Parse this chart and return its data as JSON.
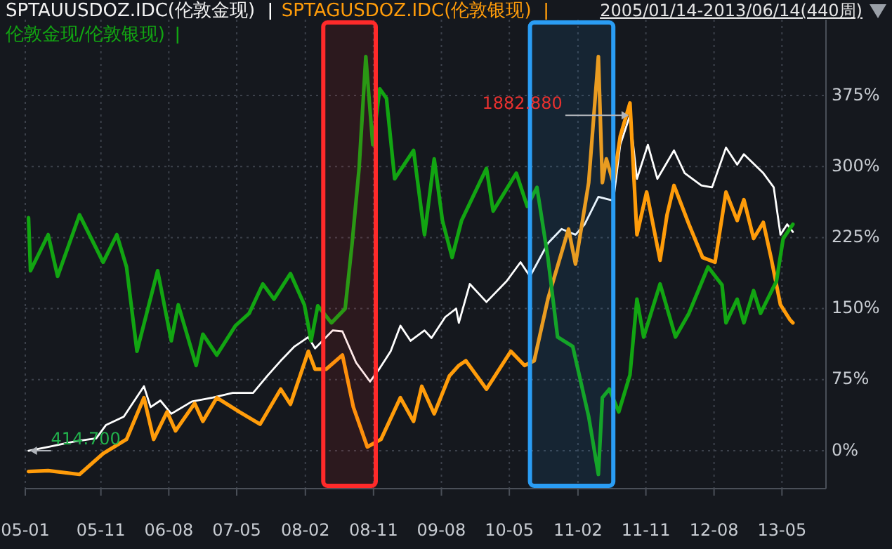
{
  "chart_data": {
    "type": "line",
    "subtitle": "2005/01/14-2013/06/14(440周)",
    "legend": "top left",
    "grid": true,
    "xlim": [
      "2005-01-01",
      "2013-10-25"
    ],
    "xticks": [
      {
        "value": "2005-01",
        "label": "05-01"
      },
      {
        "value": "2005-11",
        "label": "05-11"
      },
      {
        "value": "2006-08",
        "label": "06-08"
      },
      {
        "value": "2007-05",
        "label": "07-05"
      },
      {
        "value": "2008-02",
        "label": "08-02"
      },
      {
        "value": "2008-11",
        "label": "08-11"
      },
      {
        "value": "2009-08",
        "label": "09-08"
      },
      {
        "value": "2010-05",
        "label": "10-05"
      },
      {
        "value": "2011-02",
        "label": "11-02"
      },
      {
        "value": "2011-11",
        "label": "11-11"
      },
      {
        "value": "2012-08",
        "label": "12-08"
      },
      {
        "value": "2013-05",
        "label": "13-05"
      }
    ],
    "ylim": [
      -40,
      455
    ],
    "yticks": [
      {
        "value": 0,
        "label": "0%"
      },
      {
        "value": 75,
        "label": "75%"
      },
      {
        "value": 150,
        "label": "150%"
      },
      {
        "value": 225,
        "label": "225%"
      },
      {
        "value": 300,
        "label": "300%"
      },
      {
        "value": 375,
        "label": "375%"
      }
    ],
    "bands": [
      {
        "axis": "x",
        "from": "2008-04-13",
        "to": "2008-11-10",
        "color": "#ff2a2a"
      },
      {
        "axis": "x",
        "from": "2010-07-23",
        "to": "2011-06-23",
        "color": "#2a9df4"
      }
    ],
    "annotations": [
      {
        "text": "414.700",
        "x": "2005-01-14",
        "y": 0
      },
      {
        "text": "1882.880",
        "x": "2011-08-29",
        "y": 354
      }
    ],
    "series": [
      {
        "name": "SPTAUUSDOZ.IDC(伦敦金现)",
        "color": "#ffffff",
        "x": [
          "2005-01-14",
          "2005-04-03",
          "2005-07-21",
          "2005-10-13",
          "2005-11-21",
          "2006-02-01",
          "2006-04-23",
          "2006-05-20",
          "2006-06-28",
          "2006-08-11",
          "2006-11-02",
          "2007-01-24",
          "2007-04-15",
          "2007-07-06",
          "2007-09-01",
          "2007-10-25",
          "2007-12-19",
          "2008-02-13",
          "2008-03-11",
          "2008-05-21",
          "2008-06-29",
          "2008-08-23",
          "2008-10-18",
          "2008-11-26",
          "2009-01-09",
          "2009-02-17",
          "2009-03-30",
          "2009-05-25",
          "2009-06-22",
          "2009-08-16",
          "2009-09-29",
          "2009-10-10",
          "2009-11-23",
          "2010-01-29",
          "2010-04-20",
          "2010-06-15",
          "2010-07-23",
          "2010-10-03",
          "2010-11-27",
          "2011-01-22",
          "2011-02-28",
          "2011-04-24",
          "2011-06-07",
          "2011-06-23",
          "2011-07-21",
          "2011-08-29",
          "2011-09-26",
          "2011-11-09",
          "2011-12-17",
          "2012-02-22",
          "2012-04-05",
          "2012-06-11",
          "2012-07-24",
          "2012-09-18",
          "2012-11-02",
          "2012-11-29",
          "2013-02-15",
          "2013-03-29",
          "2013-04-25",
          "2013-05-22",
          "2013-06-14"
        ],
        "values": [
          0,
          4,
          10,
          13,
          27,
          36,
          68,
          46,
          53,
          39,
          52,
          56,
          61,
          61,
          79,
          95,
          110,
          120,
          108,
          127,
          126,
          93,
          73,
          87,
          105,
          132,
          116,
          127,
          119,
          141,
          150,
          135,
          176,
          157,
          179,
          199,
          184,
          219,
          234,
          228,
          239,
          268,
          265,
          264,
          323,
          354,
          287,
          323,
          287,
          317,
          293,
          280,
          278,
          320,
          302,
          313,
          293,
          278,
          228,
          239,
          231
        ]
      },
      {
        "name": "SPTAGUSDOZ.IDC(伦敦银现)",
        "color": "#ff9c0a",
        "x": [
          "2005-01-14",
          "2005-04-03",
          "2005-08-07",
          "2005-11-10",
          "2006-02-12",
          "2006-04-23",
          "2006-06-01",
          "2006-07-25",
          "2006-08-28",
          "2006-11-13",
          "2006-12-16",
          "2007-02-10",
          "2007-05-12",
          "2007-08-03",
          "2007-10-25",
          "2007-12-03",
          "2008-02-13",
          "2008-03-11",
          "2008-04-24",
          "2008-06-29",
          "2008-08-12",
          "2008-10-07",
          "2008-12-01",
          "2009-02-17",
          "2009-04-11",
          "2009-05-14",
          "2009-07-03",
          "2009-09-02",
          "2009-10-10",
          "2009-11-07",
          "2010-01-29",
          "2010-05-07",
          "2010-07-01",
          "2010-08-09",
          "2010-10-03",
          "2010-12-25",
          "2011-01-22",
          "2011-03-16",
          "2011-04-24",
          "2011-05-10",
          "2011-05-26",
          "2011-06-23",
          "2011-07-21",
          "2011-08-29",
          "2011-09-26",
          "2011-11-04",
          "2011-12-28",
          "2012-01-25",
          "2012-02-22",
          "2012-04-22",
          "2012-06-16",
          "2012-08-05",
          "2012-09-18",
          "2012-11-02",
          "2012-11-29",
          "2013-01-07",
          "2013-02-15",
          "2013-03-18",
          "2013-04-25",
          "2013-06-03",
          "2013-06-14"
        ],
        "values": [
          -22,
          -21,
          -25,
          -3,
          12,
          56,
          12,
          41,
          21,
          50,
          31,
          56,
          41,
          28,
          65,
          49,
          105,
          86,
          86,
          101,
          46,
          4,
          12,
          56,
          31,
          68,
          39,
          79,
          90,
          95,
          65,
          105,
          90,
          95,
          160,
          234,
          197,
          283,
          416,
          283,
          308,
          283,
          332,
          367,
          228,
          273,
          201,
          249,
          280,
          239,
          204,
          199,
          273,
          243,
          265,
          224,
          241,
          204,
          154,
          138,
          135
        ]
      },
      {
        "name": "伦敦金现/伦敦银现)",
        "color": "#12a512",
        "x": [
          "2005-01-14",
          "2005-01-22",
          "2005-04-03",
          "2005-05-11",
          "2005-08-07",
          "2005-11-10",
          "2006-01-04",
          "2006-02-12",
          "2006-03-26",
          "2006-06-17",
          "2006-08-11",
          "2006-09-08",
          "2006-11-19",
          "2006-12-16",
          "2007-02-10",
          "2007-04-26",
          "2007-06-20",
          "2007-08-14",
          "2007-09-28",
          "2007-12-03",
          "2008-01-28",
          "2008-02-24",
          "2008-03-22",
          "2008-05-16",
          "2008-07-10",
          "2008-08-07",
          "2008-09-04",
          "2008-10-01",
          "2008-10-29",
          "2008-11-26",
          "2008-12-23",
          "2009-01-25",
          "2009-04-11",
          "2009-05-25",
          "2009-07-03",
          "2009-08-05",
          "2009-09-13",
          "2009-10-21",
          "2010-01-29",
          "2010-02-25",
          "2010-05-29",
          "2010-07-12",
          "2010-08-20",
          "2010-10-03",
          "2010-11-11",
          "2011-01-11",
          "2011-03-16",
          "2011-04-24",
          "2011-05-10",
          "2011-06-07",
          "2011-07-15",
          "2011-08-29",
          "2011-09-26",
          "2011-10-23",
          "2011-12-28",
          "2012-02-28",
          "2012-04-22",
          "2012-07-08",
          "2012-09-02",
          "2012-09-18",
          "2012-11-02",
          "2012-11-29",
          "2013-01-07",
          "2013-02-04",
          "2013-04-09",
          "2013-05-06",
          "2013-06-14"
        ],
        "values": [
          246,
          190,
          228,
          184,
          249,
          199,
          228,
          194,
          105,
          190,
          116,
          154,
          90,
          123,
          101,
          132,
          145,
          176,
          160,
          187,
          154,
          116,
          153,
          135,
          150,
          219,
          298,
          416,
          323,
          382,
          372,
          287,
          317,
          228,
          308,
          243,
          204,
          243,
          298,
          253,
          293,
          258,
          278,
          204,
          120,
          110,
          36,
          -25,
          56,
          65,
          41,
          80,
          160,
          120,
          176,
          120,
          145,
          194,
          175,
          135,
          160,
          135,
          169,
          145,
          179,
          224,
          239
        ]
      }
    ]
  }
}
